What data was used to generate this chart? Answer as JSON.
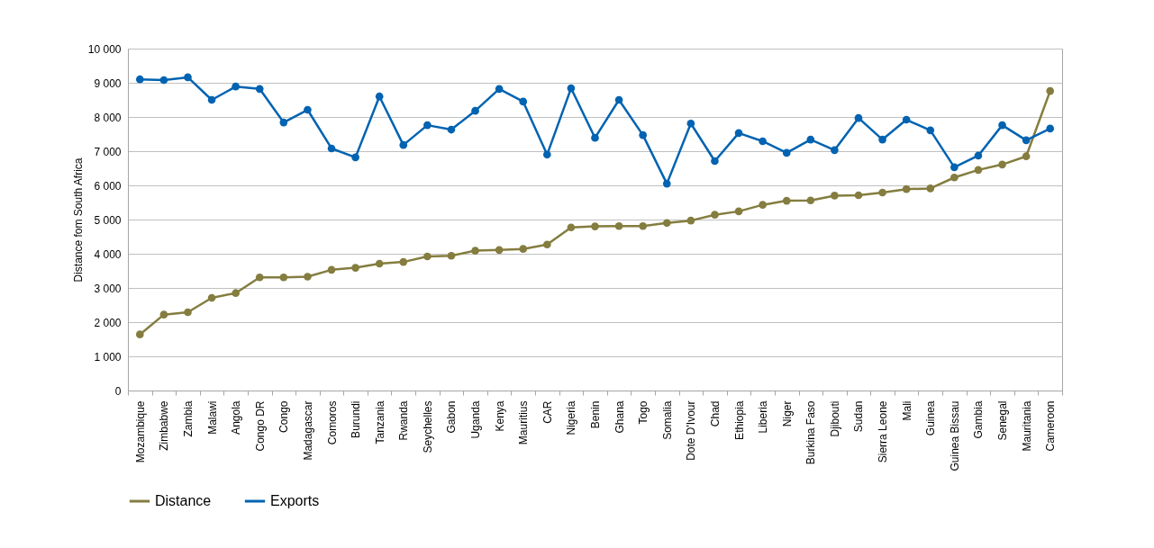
{
  "chart_data": {
    "type": "line",
    "ylabel": "Distance fom South Africa",
    "categories": [
      "Mozambique",
      "Zimbabwe",
      "Zambia",
      "Malawi",
      "Angola",
      "Congo DR",
      "Congo",
      "Madagascar",
      "Comoros",
      "Burundi",
      "Tanzania",
      "Rwanda",
      "Seychelles",
      "Gabon",
      "Uganda",
      "Kenya",
      "Mauritius",
      "CAR",
      "Nigeria",
      "Benin",
      "Ghana",
      "Togo",
      "Somalia",
      "Dote D'Ivour",
      "Chad",
      "Ethiopia",
      "Liberia",
      "Niger",
      "Burkina Faso",
      "Djibouti",
      "Sudan",
      "Sierra Leone",
      "Mali",
      "Guinea",
      "Guinea Bissau",
      "Gambia",
      "Senegal",
      "Mauritania",
      "Cameroon"
    ],
    "series": [
      {
        "name": "Distance",
        "color": "#847d3f",
        "values": [
          1640,
          2220,
          2290,
          2710,
          2850,
          3310,
          3310,
          3330,
          3530,
          3590,
          3710,
          3760,
          3920,
          3940,
          4090,
          4110,
          4140,
          4270,
          4770,
          4800,
          4810,
          4810,
          4900,
          4970,
          5140,
          5240,
          5430,
          5550,
          5560,
          5700,
          5710,
          5790,
          5890,
          5910,
          6230,
          6450,
          6610,
          6850,
          8760
        ]
      },
      {
        "name": "Exports",
        "color": "#0063b1",
        "values": [
          9100,
          9080,
          9160,
          8500,
          8890,
          8820,
          7840,
          8210,
          7080,
          6820,
          8600,
          7180,
          7760,
          7630,
          8180,
          8820,
          8450,
          6900,
          8840,
          7390,
          8500,
          7470,
          6050,
          7810,
          6710,
          7530,
          7290,
          6950,
          7340,
          7030,
          7970,
          7340,
          7920,
          7610,
          6530,
          6870,
          7760,
          7320,
          7660
        ]
      }
    ],
    "ylim": [
      0,
      10000
    ],
    "yticks": [
      {
        "value": 0,
        "label": "0"
      },
      {
        "value": 1000,
        "label": "1 000"
      },
      {
        "value": 2000,
        "label": "2 000"
      },
      {
        "value": 3000,
        "label": "3 000"
      },
      {
        "value": 4000,
        "label": "4 000"
      },
      {
        "value": 5000,
        "label": "5 000"
      },
      {
        "value": 6000,
        "label": "6 000"
      },
      {
        "value": 7000,
        "label": "7 000"
      },
      {
        "value": 8000,
        "label": "8 000"
      },
      {
        "value": 9000,
        "label": "9 000"
      },
      {
        "value": 10000,
        "label": "10 000"
      }
    ],
    "grid": "y",
    "legend": "bottom",
    "marker": "circle",
    "line_style": "solid"
  }
}
